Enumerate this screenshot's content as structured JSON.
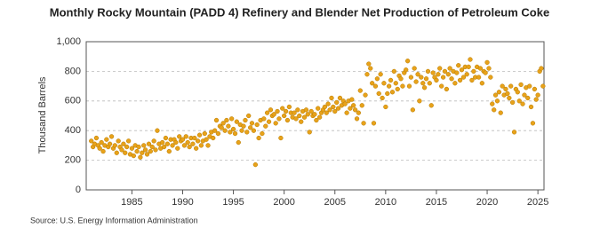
{
  "chart_data": {
    "type": "scatter",
    "title": "Monthly Rocky Mountain (PADD 4) Refinery and Blender Net Production of Petroleum Coke",
    "ylabel": "Thousand Barrels",
    "source": "Source: U.S. Energy Information Administration",
    "color": "#e8a21a",
    "grid": true,
    "xlim": [
      1980.5,
      2025.6
    ],
    "xticks": [
      1985,
      1990,
      1995,
      2000,
      2005,
      2010,
      2015,
      2020,
      2025
    ],
    "ylim": [
      0,
      1000
    ],
    "yticks": [
      0,
      200,
      400,
      600,
      800,
      {
        "value": 1000,
        "label": "1,000"
      }
    ],
    "x": [
      1981,
      1981.17,
      1981.33,
      1981.5,
      1981.67,
      1981.83,
      1982,
      1982.17,
      1982.33,
      1982.5,
      1982.67,
      1982.83,
      1983,
      1983.17,
      1983.33,
      1983.5,
      1983.67,
      1983.83,
      1984,
      1984.17,
      1984.33,
      1984.5,
      1984.67,
      1984.83,
      1985,
      1985.17,
      1985.33,
      1985.5,
      1985.67,
      1985.83,
      1986,
      1986.17,
      1986.33,
      1986.5,
      1986.67,
      1986.83,
      1987,
      1987.17,
      1987.33,
      1987.5,
      1987.67,
      1987.83,
      1988,
      1988.17,
      1988.33,
      1988.5,
      1988.67,
      1988.83,
      1989,
      1989.17,
      1989.33,
      1989.5,
      1989.67,
      1989.83,
      1990,
      1990.17,
      1990.33,
      1990.5,
      1990.67,
      1990.83,
      1991,
      1991.17,
      1991.33,
      1991.5,
      1991.67,
      1991.83,
      1992,
      1992.17,
      1992.33,
      1992.5,
      1992.67,
      1992.83,
      1993,
      1993.17,
      1993.33,
      1993.5,
      1993.67,
      1993.83,
      1994,
      1994.17,
      1994.33,
      1994.5,
      1994.67,
      1994.83,
      1995,
      1995.17,
      1995.33,
      1995.5,
      1995.67,
      1995.83,
      1996,
      1996.17,
      1996.33,
      1996.5,
      1996.67,
      1996.83,
      1997,
      1997.17,
      1997.33,
      1997.5,
      1997.67,
      1997.83,
      1998,
      1998.17,
      1998.33,
      1998.5,
      1998.67,
      1998.83,
      1999,
      1999.17,
      1999.33,
      1999.5,
      1999.67,
      1999.83,
      2000,
      2000.17,
      2000.33,
      2000.5,
      2000.67,
      2000.83,
      2001,
      2001.17,
      2001.33,
      2001.5,
      2001.67,
      2001.83,
      2002,
      2002.17,
      2002.33,
      2002.5,
      2002.67,
      2002.83,
      2003,
      2003.17,
      2003.33,
      2003.5,
      2003.67,
      2003.83,
      2004,
      2004.17,
      2004.33,
      2004.5,
      2004.67,
      2004.83,
      2005,
      2005.17,
      2005.33,
      2005.5,
      2005.67,
      2005.83,
      2006,
      2006.17,
      2006.33,
      2006.5,
      2006.67,
      2006.83,
      2007,
      2007.17,
      2007.33,
      2007.5,
      2007.67,
      2007.83,
      2008,
      2008.17,
      2008.33,
      2008.5,
      2008.67,
      2008.83,
      2009,
      2009.17,
      2009.33,
      2009.5,
      2009.67,
      2009.83,
      2010,
      2010.17,
      2010.33,
      2010.5,
      2010.67,
      2010.83,
      2011,
      2011.17,
      2011.33,
      2011.5,
      2011.67,
      2011.83,
      2012,
      2012.17,
      2012.33,
      2012.5,
      2012.67,
      2012.83,
      2013,
      2013.17,
      2013.33,
      2013.5,
      2013.67,
      2013.83,
      2014,
      2014.17,
      2014.33,
      2014.5,
      2014.67,
      2014.83,
      2015,
      2015.17,
      2015.33,
      2015.5,
      2015.67,
      2015.83,
      2016,
      2016.17,
      2016.33,
      2016.5,
      2016.67,
      2016.83,
      2017,
      2017.17,
      2017.33,
      2017.5,
      2017.67,
      2017.83,
      2018,
      2018.17,
      2018.33,
      2018.5,
      2018.67,
      2018.83,
      2019,
      2019.17,
      2019.33,
      2019.5,
      2019.67,
      2019.83,
      2020,
      2020.17,
      2020.33,
      2020.5,
      2020.67,
      2020.83,
      2021,
      2021.17,
      2021.33,
      2021.5,
      2021.67,
      2021.83,
      2022,
      2022.17,
      2022.33,
      2022.5,
      2022.67,
      2022.83,
      2023,
      2023.17,
      2023.33,
      2023.5,
      2023.67,
      2023.83,
      2024,
      2024.17,
      2024.33,
      2024.5,
      2024.67,
      2024.83,
      2025,
      2025.17,
      2025.33,
      2025.5
    ],
    "values": [
      330,
      290,
      310,
      350,
      300,
      280,
      320,
      260,
      300,
      340,
      290,
      310,
      360,
      280,
      300,
      250,
      330,
      290,
      270,
      310,
      250,
      290,
      330,
      240,
      280,
      230,
      300,
      260,
      290,
      220,
      250,
      300,
      270,
      240,
      310,
      260,
      290,
      330,
      270,
      400,
      310,
      280,
      320,
      290,
      350,
      310,
      260,
      340,
      300,
      340,
      320,
      280,
      360,
      330,
      340,
      300,
      360,
      320,
      290,
      350,
      310,
      350,
      280,
      330,
      370,
      300,
      330,
      380,
      340,
      300,
      360,
      390,
      350,
      400,
      470,
      380,
      430,
      420,
      450,
      400,
      470,
      430,
      390,
      480,
      410,
      380,
      460,
      320,
      440,
      400,
      430,
      470,
      390,
      500,
      420,
      450,
      400,
      170,
      440,
      350,
      470,
      380,
      480,
      430,
      520,
      460,
      540,
      500,
      510,
      450,
      530,
      480,
      350,
      550,
      500,
      530,
      470,
      560,
      520,
      490,
      520,
      480,
      540,
      500,
      460,
      530,
      490,
      540,
      510,
      390,
      530,
      500,
      510,
      470,
      550,
      490,
      520,
      540,
      560,
      520,
      580,
      540,
      620,
      560,
      530,
      590,
      550,
      620,
      570,
      600,
      580,
      520,
      600,
      550,
      610,
      570,
      540,
      480,
      520,
      670,
      570,
      450,
      640,
      780,
      850,
      820,
      720,
      450,
      700,
      750,
      650,
      780,
      620,
      720,
      560,
      650,
      700,
      740,
      660,
      800,
      720,
      680,
      770,
      750,
      700,
      790,
      810,
      870,
      700,
      760,
      540,
      820,
      730,
      780,
      600,
      760,
      720,
      690,
      750,
      800,
      720,
      570,
      790,
      760,
      740,
      780,
      820,
      700,
      760,
      800,
      680,
      780,
      820,
      750,
      800,
      720,
      790,
      840,
      740,
      810,
      760,
      830,
      780,
      830,
      880,
      740,
      800,
      760,
      830,
      760,
      820,
      720,
      800,
      790,
      860,
      820,
      760,
      580,
      540,
      640,
      600,
      660,
      520,
      700,
      640,
      680,
      650,
      620,
      700,
      590,
      390,
      680,
      660,
      600,
      710,
      580,
      640,
      690,
      620,
      700,
      560,
      450,
      680,
      610,
      640,
      800,
      820,
      700
    ]
  }
}
